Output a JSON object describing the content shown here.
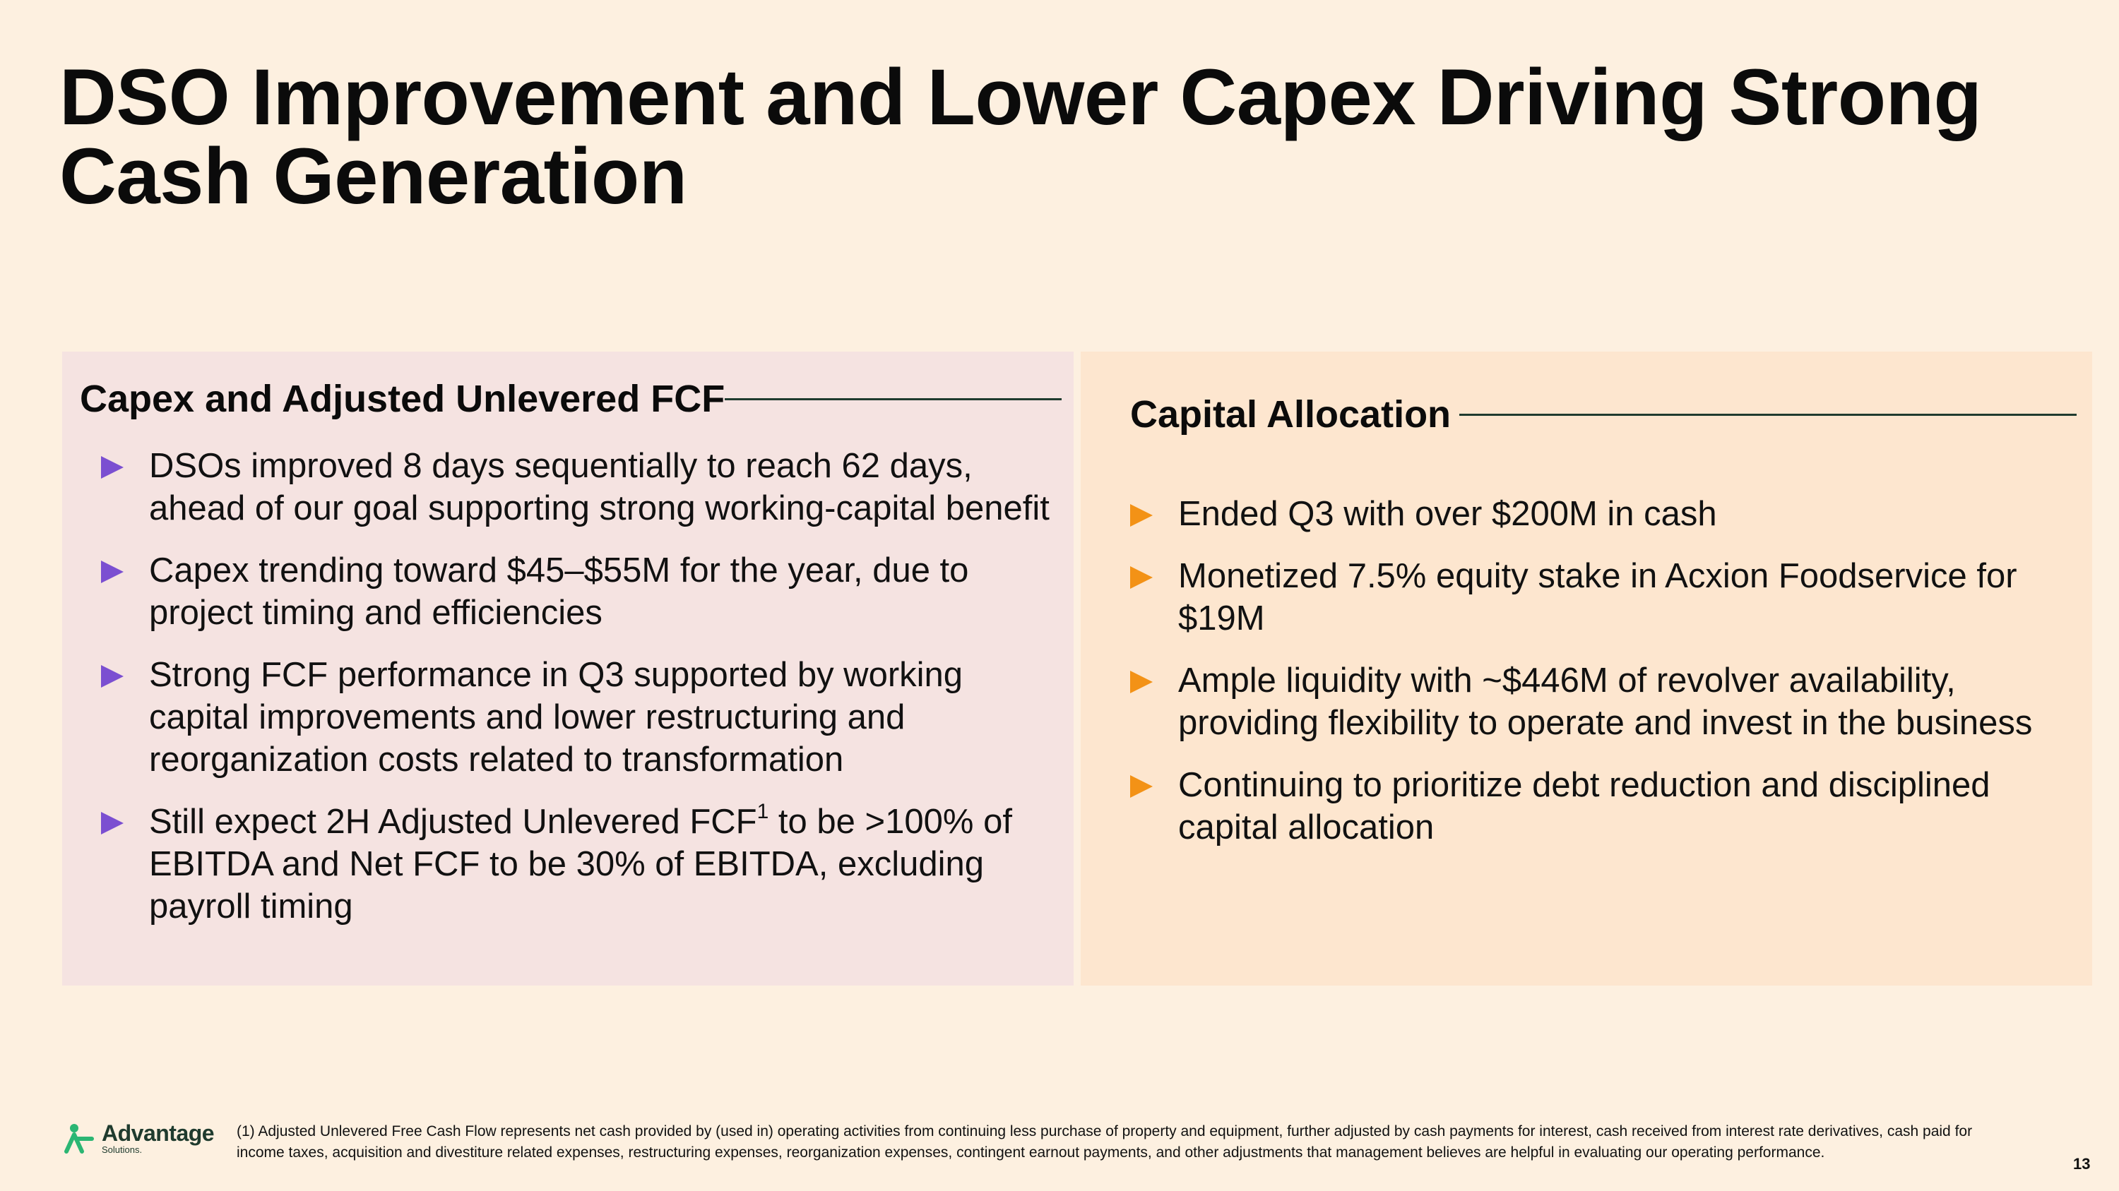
{
  "slide": {
    "title_line1": "DSO Improvement and Lower Capex Driving Strong",
    "title_line2": "Cash Generation",
    "page_number": "13"
  },
  "left_panel": {
    "heading": "Capex and Adjusted Unlevered FCF",
    "bullets": [
      {
        "text": "DSOs improved 8 days sequentially to reach 62 days, ahead of our goal supporting strong working-capital benefit"
      },
      {
        "text": "Capex trending toward $45–$55M for the year, due to project timing and efficiencies"
      },
      {
        "text": "Strong FCF performance in Q3 supported by working capital improvements and lower restructuring and reorganization costs related to transformation"
      },
      {
        "text_before": "Still expect 2H Adjusted Unlevered FCF",
        "sup": "1",
        "text_after": " to be >100% of EBITDA and Net FCF to be 30% of EBITDA, excluding payroll timing"
      }
    ]
  },
  "right_panel": {
    "heading": "Capital Allocation",
    "bullets": [
      {
        "text": "Ended Q3 with over $200M in cash"
      },
      {
        "text": "Monetized 7.5% equity stake in Acxion Foodservice for $19M"
      },
      {
        "text": "Ample liquidity with ~$446M of revolver availability, providing flexibility to operate and invest in the business"
      },
      {
        "text": "Continuing to prioritize debt reduction and disciplined capital allocation"
      }
    ]
  },
  "footer": {
    "logo_name": "Advantage",
    "logo_sub": "Solutions.",
    "footnote": "(1)  Adjusted Unlevered Free Cash Flow represents net cash provided by (used in) operating activities from continuing less purchase of property and equipment, further adjusted by cash payments for interest, cash received from interest rate derivatives, cash paid for income taxes, acquisition and divestiture related expenses, restructuring expenses, reorganization expenses, contingent earnout payments, and other adjustments that management believes are helpful in evaluating our operating performance."
  },
  "colors": {
    "background": "#fdf0e0",
    "left_panel_bg": "#f5e3e1",
    "right_panel_bg": "#fde6cf",
    "left_bullet": "#7b4fd1",
    "right_bullet": "#f39216",
    "logo_green": "#2bb673"
  }
}
